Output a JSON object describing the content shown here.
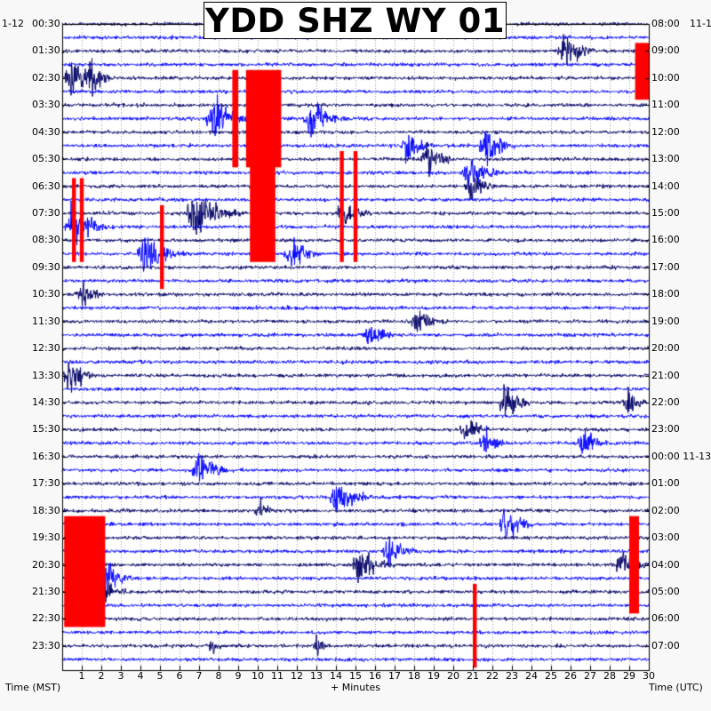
{
  "title": "YDD SHZ WY 01",
  "corner_labels": {
    "left": "1-12",
    "right": "11-1"
  },
  "footer": {
    "left": "Time (MST)",
    "center": "+ Minutes",
    "right": "Time (UTC)"
  },
  "colors": {
    "trace_dark": "#000066",
    "trace_light": "#0000ff",
    "clip": "#ff0000",
    "background": "#ffffff",
    "page": "#f8f8f8"
  },
  "chart_data": {
    "type": "line",
    "xlabel": "+ Minutes",
    "xlim": [
      0,
      30
    ],
    "x_ticks": [
      "1",
      "2",
      "3",
      "4",
      "5",
      "6",
      "7",
      "8",
      "9",
      "10",
      "11",
      "12",
      "13",
      "14",
      "15",
      "16",
      "17",
      "18",
      "19",
      "20",
      "21",
      "22",
      "23",
      "24",
      "25",
      "26",
      "27",
      "28",
      "29",
      "30"
    ],
    "left_axis_label": "Time (MST)",
    "right_axis_label": "Time (UTC)",
    "left_time_labels": [
      "00:30",
      "01:30",
      "02:30",
      "03:30",
      "04:30",
      "05:30",
      "06:30",
      "07:30",
      "08:30",
      "09:30",
      "10:30",
      "11:30",
      "12:30",
      "13:30",
      "14:30",
      "15:30",
      "16:30",
      "17:30",
      "18:30",
      "19:30",
      "20:30",
      "21:30",
      "22:30",
      "23:30"
    ],
    "right_time_labels": [
      "08:00",
      "09:00",
      "10:00",
      "11:00",
      "12:00",
      "13:00",
      "14:00",
      "15:00",
      "16:00",
      "17:00",
      "18:00",
      "19:00",
      "20:00",
      "21:00",
      "22:00",
      "23:00",
      "00:00 11-13",
      "01:00",
      "02:00",
      "03:00",
      "04:00",
      "05:00",
      "06:00",
      "07:00"
    ],
    "traces_count": 48,
    "trace_colors": [
      "#000066",
      "#0000ff"
    ],
    "events": [
      {
        "trace": 2,
        "minute": 25.5,
        "amp": 1.3,
        "len": 2.5
      },
      {
        "trace": 4,
        "minute": 0.3,
        "amp": 1.6,
        "len": 2.5
      },
      {
        "trace": 4,
        "minute": 1.3,
        "amp": 1.4,
        "len": 1.5
      },
      {
        "trace": 7,
        "minute": 7.5,
        "amp": 1.6,
        "len": 2.5
      },
      {
        "trace": 7,
        "minute": 12.5,
        "amp": 1.3,
        "len": 2.5
      },
      {
        "trace": 9,
        "minute": 17.5,
        "amp": 1.3,
        "len": 2.0
      },
      {
        "trace": 9,
        "minute": 21.5,
        "amp": 1.5,
        "len": 2.0
      },
      {
        "trace": 10,
        "minute": 18.5,
        "amp": 1.2,
        "len": 2.0
      },
      {
        "trace": 11,
        "minute": 20.5,
        "amp": 1.0,
        "len": 3.0
      },
      {
        "trace": 12,
        "minute": 20.7,
        "amp": 1.0,
        "len": 2.0
      },
      {
        "trace": 14,
        "minute": 14.2,
        "amp": 1.3,
        "len": 2.0
      },
      {
        "trace": 14,
        "minute": 6.5,
        "amp": 1.6,
        "len": 3.5
      },
      {
        "trace": 15,
        "minute": 0.3,
        "amp": 1.6,
        "len": 2.5
      },
      {
        "trace": 17,
        "minute": 4.0,
        "amp": 1.7,
        "len": 2.5
      },
      {
        "trace": 17,
        "minute": 11.5,
        "amp": 1.4,
        "len": 2.0
      },
      {
        "trace": 20,
        "minute": 0.8,
        "amp": 0.9,
        "len": 2.0
      },
      {
        "trace": 22,
        "minute": 18.0,
        "amp": 1.1,
        "len": 2.0
      },
      {
        "trace": 23,
        "minute": 15.5,
        "amp": 1.1,
        "len": 2.0
      },
      {
        "trace": 26,
        "minute": 0.2,
        "amp": 1.3,
        "len": 2.0
      },
      {
        "trace": 28,
        "minute": 22.5,
        "amp": 1.3,
        "len": 2.0
      },
      {
        "trace": 28,
        "minute": 28.8,
        "amp": 1.1,
        "len": 1.5
      },
      {
        "trace": 30,
        "minute": 20.5,
        "amp": 1.0,
        "len": 2.0
      },
      {
        "trace": 31,
        "minute": 21.5,
        "amp": 1.3,
        "len": 1.5
      },
      {
        "trace": 31,
        "minute": 26.5,
        "amp": 1.0,
        "len": 2.0
      },
      {
        "trace": 33,
        "minute": 6.8,
        "amp": 1.2,
        "len": 2.5
      },
      {
        "trace": 35,
        "minute": 13.8,
        "amp": 1.4,
        "len": 2.5
      },
      {
        "trace": 36,
        "minute": 10.0,
        "amp": 0.8,
        "len": 1.5
      },
      {
        "trace": 37,
        "minute": 22.5,
        "amp": 1.3,
        "len": 2.0
      },
      {
        "trace": 39,
        "minute": 16.5,
        "amp": 1.0,
        "len": 2.5
      },
      {
        "trace": 40,
        "minute": 15.0,
        "amp": 1.2,
        "len": 2.5
      },
      {
        "trace": 40,
        "minute": 28.5,
        "amp": 1.3,
        "len": 2.0
      },
      {
        "trace": 41,
        "minute": 2.0,
        "amp": 1.3,
        "len": 2.0
      },
      {
        "trace": 42,
        "minute": 2.0,
        "amp": 0.9,
        "len": 2.0
      },
      {
        "trace": 46,
        "minute": 7.5,
        "amp": 0.8,
        "len": 1.0
      },
      {
        "trace": 46,
        "minute": 12.9,
        "amp": 0.8,
        "len": 1.0
      }
    ],
    "clipped_blocks": [
      {
        "trace_from": 2,
        "trace_to": 5,
        "minute_from": 29.3,
        "minute_to": 30.0
      },
      {
        "trace_from": 4,
        "trace_to": 10,
        "minute_from": 8.7,
        "minute_to": 9.0
      },
      {
        "trace_from": 4,
        "trace_to": 10,
        "minute_from": 9.4,
        "minute_to": 11.2
      },
      {
        "trace_from": 9,
        "trace_to": 17,
        "minute_from": 9.6,
        "minute_to": 10.9
      },
      {
        "trace_from": 10,
        "trace_to": 17,
        "minute_from": 14.2,
        "minute_to": 14.4
      },
      {
        "trace_from": 10,
        "trace_to": 17,
        "minute_from": 14.9,
        "minute_to": 15.1
      },
      {
        "trace_from": 12,
        "trace_to": 17,
        "minute_from": 0.5,
        "minute_to": 0.7
      },
      {
        "trace_from": 12,
        "trace_to": 17,
        "minute_from": 0.9,
        "minute_to": 1.1
      },
      {
        "trace_from": 14,
        "trace_to": 19,
        "minute_from": 5.0,
        "minute_to": 5.2
      },
      {
        "trace_from": 37,
        "trace_to": 44,
        "minute_from": 0.1,
        "minute_to": 2.2
      },
      {
        "trace_from": 37,
        "trace_to": 43,
        "minute_from": 29.0,
        "minute_to": 29.5
      },
      {
        "trace_from": 42,
        "trace_to": 47,
        "minute_from": 21.0,
        "minute_to": 21.2
      }
    ]
  }
}
